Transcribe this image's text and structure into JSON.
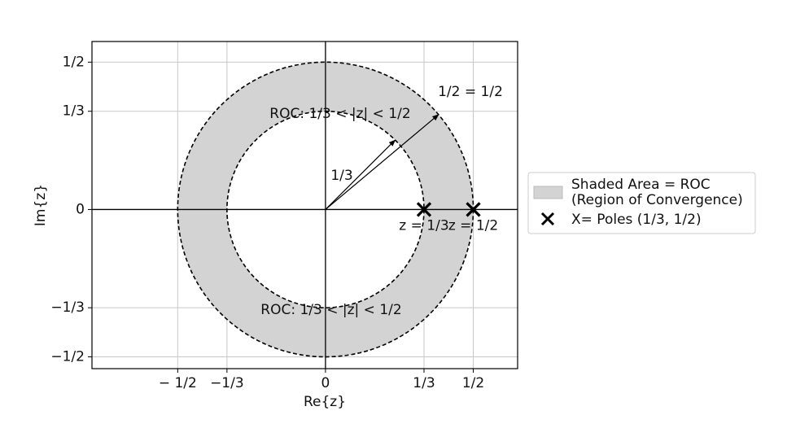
{
  "chart_data": {
    "type": "pole-zero",
    "xlabel": "Re{z}",
    "ylabel": "Im{z}",
    "xlim": [
      -0.79,
      0.65
    ],
    "ylim": [
      -0.54,
      0.57
    ],
    "xticks": [
      {
        "value": -0.5,
        "label": "− 1/2"
      },
      {
        "value": -0.3333,
        "label": "−1/3"
      },
      0,
      {
        "value": 0.3333,
        "label": "1/3"
      },
      {
        "value": 0.5,
        "label": "1/2"
      }
    ],
    "yticks": [
      {
        "value": -0.5,
        "label": "−1/2"
      },
      {
        "value": -0.3333,
        "label": "−1/3"
      },
      0,
      {
        "value": 0.3333,
        "label": "1/3"
      },
      {
        "value": 0.5,
        "label": "1/2"
      }
    ],
    "grid": true,
    "roc": {
      "inner_radius": 0.3333,
      "outer_radius": 0.5,
      "color": "#d3d3d3",
      "name": [
        "Shaded Area = ROC",
        "(Region of Convergence)"
      ]
    },
    "series": [
      {
        "name": "X= Poles (1/3, 1/2)",
        "color": "#000000",
        "x": [
          0.3333,
          0.5
        ],
        "values": [
          0,
          0
        ],
        "value_labels": [
          "z = 1/3",
          "z = 1/2"
        ]
      }
    ],
    "annotations": [
      "ROC: 1/3 < |z| < 1/2",
      "ROC: 1/3 < |z| < 1/2",
      "1/3",
      "1/2 = 1/2"
    ],
    "legend": "right"
  }
}
